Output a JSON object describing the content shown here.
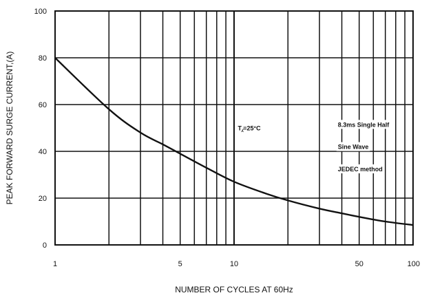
{
  "chart_data": {
    "type": "line",
    "title": "",
    "xlabel": "NUMBER OF CYCLES AT 60Hz",
    "ylabel": "PEAK FORWARD SURGE CURRENT,(A)",
    "x_scale": "log",
    "xlim": [
      1,
      100
    ],
    "ylim": [
      0,
      100
    ],
    "x_ticks": [
      1,
      5,
      10,
      50,
      100
    ],
    "x_tick_labels": [
      "1",
      "5",
      "10",
      "50",
      "100"
    ],
    "y_ticks": [
      0,
      20,
      40,
      60,
      80,
      100
    ],
    "y_tick_labels": [
      "0",
      "20",
      "40",
      "60",
      "80",
      "100"
    ],
    "grid": true,
    "series": [
      {
        "x": [
          1,
          2,
          3,
          4,
          5,
          7,
          10,
          15,
          20,
          30,
          40,
          50,
          70,
          100
        ],
        "y": [
          80,
          58,
          48,
          43,
          39,
          33,
          27,
          22,
          19,
          15.5,
          13.5,
          12,
          10,
          8.5
        ]
      }
    ],
    "annotations": [
      {
        "text": "T⁁=25°C",
        "x": 10.5,
        "y": 49
      },
      {
        "text": "8.3ms Single Half",
        "x": 38,
        "y": 50.5
      },
      {
        "text": "Sine Wave",
        "x": 38,
        "y": 41
      },
      {
        "text": "JEDEC method",
        "x": 38,
        "y": 31.5
      }
    ]
  }
}
